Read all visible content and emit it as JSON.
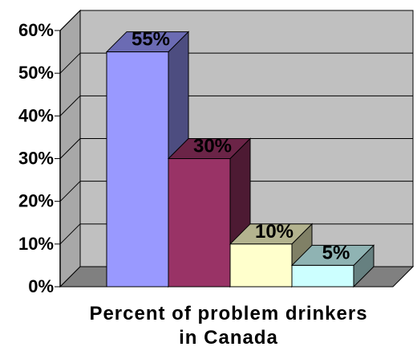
{
  "chart_data": {
    "type": "bar",
    "style": "3d",
    "categories": [
      "",
      "",
      "",
      ""
    ],
    "values": [
      55,
      30,
      10,
      5
    ],
    "value_labels": [
      "55%",
      "30%",
      "10%",
      "5%"
    ],
    "colors": [
      "#9999ff",
      "#993366",
      "#ffffcc",
      "#ccffff"
    ],
    "side_colors": [
      "#4d4d80",
      "#4d1a33",
      "#808066",
      "#668080"
    ],
    "top_colors": [
      "#6b6bb3",
      "#6b2447",
      "#b3b38f",
      "#8fb3b3"
    ],
    "ylim": [
      0,
      60
    ],
    "yticks": [
      0,
      10,
      20,
      30,
      40,
      50,
      60
    ],
    "ytick_labels": [
      "0%",
      "10%",
      "20%",
      "30%",
      "40%",
      "50%",
      "60%"
    ],
    "xlabel_lines": [
      "Percent of problem drinkers",
      "in Canada"
    ],
    "ylabel": "",
    "title": "",
    "grid": true,
    "legend": "none",
    "wall_color": "#c0c0c0",
    "floor_color": "#808080"
  }
}
